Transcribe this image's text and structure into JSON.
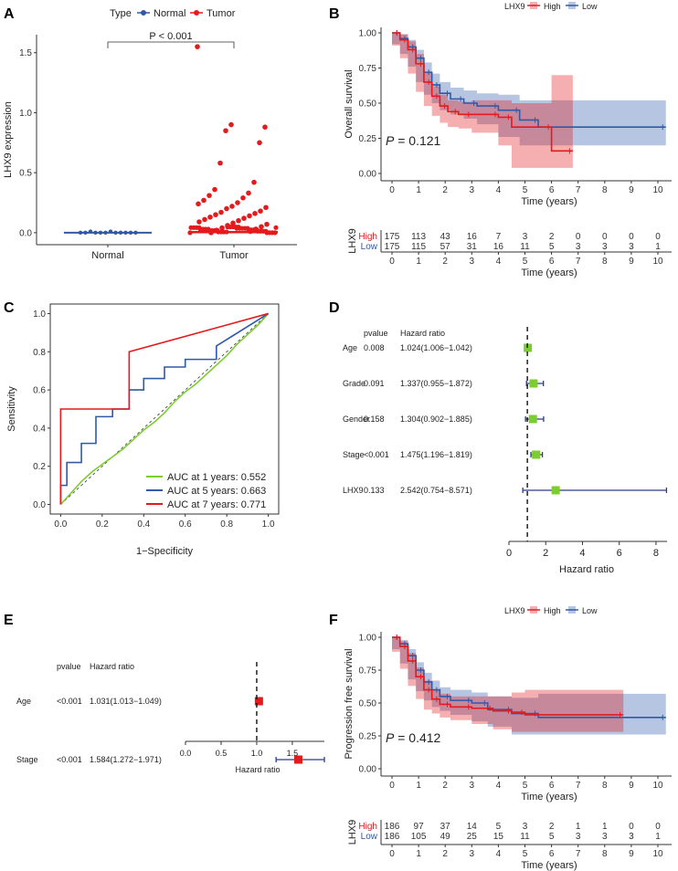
{
  "chart_data": [
    {
      "panel": "A",
      "type": "scatter",
      "legend_title": "Type",
      "legend": [
        "Normal",
        "Tumor"
      ],
      "categories": [
        "Normal",
        "Tumor"
      ],
      "ylabel": "LHX9 expression",
      "ylim": [
        -0.1,
        1.65
      ],
      "yticks": [
        "0.0",
        "0.5",
        "1.0",
        "1.5"
      ],
      "pvalue": "P < 0.001",
      "colors": {
        "normal": "#2f5aa8",
        "tumor": "#e41a1c"
      },
      "tumor_points": [
        1.55,
        0.9,
        0.88,
        0.85,
        0.75,
        0.58,
        0.42,
        0.36,
        0.33,
        0.31,
        0.29,
        0.27,
        0.25,
        0.24,
        0.22,
        0.21,
        0.2,
        0.18,
        0.17,
        0.16,
        0.15,
        0.14,
        0.13,
        0.12,
        0.11,
        0.1,
        0.09,
        0.08,
        0.07,
        0.06,
        0.05,
        0.04,
        0.03,
        0.02,
        0.01,
        0.0
      ],
      "normal_points": [
        0.0,
        0.0,
        0.01,
        0.0,
        0.0,
        0.0,
        0.01,
        0.0,
        0.0,
        0.0,
        0.0,
        0.0
      ],
      "medians": [
        0.0,
        0.005
      ]
    },
    {
      "panel": "B",
      "type": "line",
      "legend_title": "LHX9",
      "legend": [
        "High",
        "Low"
      ],
      "ylabel": "Overall survival",
      "xlabel": "Time (years)",
      "xlim": [
        0,
        10.3
      ],
      "ylim": [
        0,
        1.05
      ],
      "xticks": [
        "0",
        "1",
        "2",
        "3",
        "4",
        "5",
        "6",
        "7",
        "8",
        "9",
        "10"
      ],
      "yticks": [
        "0.00",
        "0.25",
        "0.50",
        "0.75",
        "1.00"
      ],
      "pvalue_prefix": "P",
      "pvalue_value": " = 0.121",
      "series": [
        {
          "name": "High",
          "color": "#e41a1c",
          "x": [
            0,
            0.3,
            0.6,
            0.9,
            1.2,
            1.5,
            1.8,
            2.1,
            2.5,
            3.0,
            4.0,
            4.5,
            6.0,
            6.8
          ],
          "y": [
            1,
            0.95,
            0.88,
            0.78,
            0.65,
            0.55,
            0.48,
            0.44,
            0.42,
            0.42,
            0.4,
            0.33,
            0.16,
            0.16
          ],
          "lower": [
            1,
            0.91,
            0.82,
            0.71,
            0.58,
            0.48,
            0.41,
            0.36,
            0.33,
            0.32,
            0.29,
            0.2,
            0.04,
            0.04
          ],
          "upper": [
            1,
            0.99,
            0.94,
            0.85,
            0.72,
            0.62,
            0.56,
            0.52,
            0.51,
            0.52,
            0.52,
            0.5,
            0.7,
            0.7
          ]
        },
        {
          "name": "Low",
          "color": "#2f5aa8",
          "x": [
            0,
            0.3,
            0.6,
            0.9,
            1.2,
            1.5,
            1.8,
            2.2,
            2.7,
            3.2,
            4.0,
            4.8,
            5.5,
            10.3
          ],
          "y": [
            1,
            0.96,
            0.9,
            0.82,
            0.72,
            0.63,
            0.57,
            0.53,
            0.5,
            0.48,
            0.45,
            0.38,
            0.33,
            0.33
          ],
          "lower": [
            1,
            0.92,
            0.85,
            0.76,
            0.65,
            0.56,
            0.5,
            0.45,
            0.42,
            0.39,
            0.35,
            0.26,
            0.2,
            0.2
          ],
          "upper": [
            1,
            0.99,
            0.95,
            0.88,
            0.79,
            0.71,
            0.65,
            0.61,
            0.59,
            0.57,
            0.56,
            0.52,
            0.52,
            0.52
          ]
        }
      ],
      "risk_table": {
        "label": "LHX9",
        "rows": [
          {
            "name": "High",
            "values": [
              "175",
              "113",
              "43",
              "16",
              "7",
              "3",
              "2",
              "0",
              "0",
              "0",
              "0"
            ]
          },
          {
            "name": "Low",
            "values": [
              "175",
              "115",
              "57",
              "31",
              "16",
              "11",
              "5",
              "3",
              "3",
              "3",
              "1"
            ]
          }
        ]
      }
    },
    {
      "panel": "C",
      "type": "line",
      "ylabel": "Sensitivity",
      "xlabel": "1−Specificity",
      "xlim": [
        -0.05,
        1.05
      ],
      "ylim": [
        -0.05,
        1.05
      ],
      "xticks": [
        "0.0",
        "0.2",
        "0.4",
        "0.6",
        "0.8",
        "1.0"
      ],
      "yticks": [
        "0.0",
        "0.2",
        "0.4",
        "0.6",
        "0.8",
        "1.0"
      ],
      "series": [
        {
          "name": "AUC at 1 years: 0.552",
          "color": "#7ccd2f",
          "x": [
            0,
            0.05,
            0.1,
            0.15,
            0.2,
            0.25,
            0.3,
            0.35,
            0.4,
            0.45,
            0.5,
            0.55,
            0.6,
            0.65,
            0.7,
            0.75,
            0.8,
            0.85,
            0.9,
            0.95,
            1
          ],
          "y": [
            0,
            0.06,
            0.12,
            0.17,
            0.21,
            0.25,
            0.29,
            0.34,
            0.39,
            0.43,
            0.48,
            0.54,
            0.59,
            0.63,
            0.68,
            0.73,
            0.78,
            0.84,
            0.89,
            0.94,
            1
          ]
        },
        {
          "name": "AUC at 5 years: 0.663",
          "color": "#2f5aa8",
          "x": [
            0,
            0,
            0.03,
            0.03,
            0.1,
            0.1,
            0.17,
            0.17,
            0.25,
            0.25,
            0.33,
            0.33,
            0.4,
            0.4,
            0.5,
            0.5,
            0.6,
            0.6,
            0.75,
            0.75,
            1
          ],
          "y": [
            0,
            0.1,
            0.1,
            0.22,
            0.22,
            0.32,
            0.32,
            0.46,
            0.46,
            0.5,
            0.5,
            0.6,
            0.6,
            0.66,
            0.66,
            0.72,
            0.72,
            0.76,
            0.76,
            0.83,
            1
          ]
        },
        {
          "name": "AUC at 7 years: 0.771",
          "color": "#e41a1c",
          "x": [
            0,
            0,
            0.33,
            0.33,
            1
          ],
          "y": [
            0,
            0.5,
            0.5,
            0.8,
            1
          ]
        }
      ]
    },
    {
      "panel": "D",
      "type": "scatter",
      "subtype": "forest",
      "col_pvalue": "pvalue",
      "col_hr": "Hazard ratio",
      "xlabel": "Hazard ratio",
      "xlim": [
        0,
        8.6
      ],
      "xticks": [
        "0",
        "2",
        "4",
        "6",
        "8"
      ],
      "ref_line": 1,
      "color": "#7ccd2f",
      "rows": [
        {
          "label": "Age",
          "pvalue": "0.008",
          "hr_text": "1.024(1.006−1.042)",
          "hr": 1.024,
          "lo": 1.006,
          "hi": 1.042
        },
        {
          "label": "Grade",
          "pvalue": "0.091",
          "hr_text": "1.337(0.955−1.872)",
          "hr": 1.337,
          "lo": 0.955,
          "hi": 1.872
        },
        {
          "label": "Gender",
          "pvalue": "0.158",
          "hr_text": "1.304(0.902−1.885)",
          "hr": 1.304,
          "lo": 0.902,
          "hi": 1.885
        },
        {
          "label": "Stage",
          "pvalue": "<0.001",
          "hr_text": "1.475(1.196−1.819)",
          "hr": 1.475,
          "lo": 1.196,
          "hi": 1.819
        },
        {
          "label": "LHX9",
          "pvalue": "0.133",
          "hr_text": "2.542(0.754−8.571)",
          "hr": 2.542,
          "lo": 0.754,
          "hi": 8.571
        }
      ]
    },
    {
      "panel": "E",
      "type": "scatter",
      "subtype": "forest",
      "col_pvalue": "pvalue",
      "col_hr": "Hazard ratio",
      "xlabel": "Hazard ratio",
      "xlim": [
        0,
        1.95
      ],
      "xticks": [
        "0.0",
        "0.5",
        "1.0",
        "1.5"
      ],
      "ref_line": 1,
      "color": "#e41a1c",
      "rows": [
        {
          "label": "Age",
          "pvalue": "<0.001",
          "hr_text": "1.031(1.013−1.049)",
          "hr": 1.031,
          "lo": 1.013,
          "hi": 1.049
        },
        {
          "label": "Stage",
          "pvalue": "<0.001",
          "hr_text": "1.584(1.272−1.971)",
          "hr": 1.584,
          "lo": 1.272,
          "hi": 1.971
        }
      ]
    },
    {
      "panel": "F",
      "type": "line",
      "legend_title": "LHX9",
      "legend": [
        "High",
        "Low"
      ],
      "ylabel": "Progression free survival",
      "xlabel": "Time (years)",
      "xlim": [
        0,
        10.3
      ],
      "ylim": [
        0,
        1.05
      ],
      "xticks": [
        "0",
        "1",
        "2",
        "3",
        "4",
        "5",
        "6",
        "7",
        "8",
        "9",
        "10"
      ],
      "yticks": [
        "0.00",
        "0.25",
        "0.50",
        "0.75",
        "1.00"
      ],
      "pvalue_prefix": "P",
      "pvalue_value": " = 0.412",
      "series": [
        {
          "name": "High",
          "color": "#e41a1c",
          "x": [
            0,
            0.3,
            0.6,
            0.9,
            1.2,
            1.5,
            1.8,
            2.2,
            3.0,
            3.8,
            4.5,
            5.0,
            8.7
          ],
          "y": [
            1,
            0.93,
            0.82,
            0.7,
            0.6,
            0.53,
            0.49,
            0.47,
            0.46,
            0.44,
            0.43,
            0.41,
            0.41
          ],
          "lower": [
            1,
            0.89,
            0.76,
            0.63,
            0.53,
            0.45,
            0.42,
            0.39,
            0.37,
            0.34,
            0.3,
            0.28,
            0.28
          ],
          "upper": [
            1,
            0.97,
            0.88,
            0.77,
            0.67,
            0.6,
            0.57,
            0.55,
            0.55,
            0.55,
            0.58,
            0.6,
            0.6
          ]
        },
        {
          "name": "Low",
          "color": "#2f5aa8",
          "x": [
            0,
            0.3,
            0.6,
            0.9,
            1.2,
            1.5,
            1.8,
            2.2,
            3.0,
            3.6,
            4.5,
            5.5,
            10.3
          ],
          "y": [
            1,
            0.95,
            0.86,
            0.75,
            0.66,
            0.6,
            0.55,
            0.52,
            0.5,
            0.45,
            0.42,
            0.39,
            0.39
          ],
          "lower": [
            1,
            0.91,
            0.8,
            0.68,
            0.59,
            0.52,
            0.47,
            0.44,
            0.41,
            0.36,
            0.32,
            0.26,
            0.26
          ],
          "upper": [
            1,
            0.98,
            0.91,
            0.81,
            0.73,
            0.67,
            0.62,
            0.6,
            0.58,
            0.55,
            0.54,
            0.57,
            0.57
          ]
        }
      ],
      "risk_table": {
        "label": "LHX9",
        "rows": [
          {
            "name": "High",
            "values": [
              "186",
              "97",
              "37",
              "14",
              "5",
              "3",
              "2",
              "1",
              "1",
              "0",
              "0"
            ]
          },
          {
            "name": "Low",
            "values": [
              "186",
              "105",
              "49",
              "25",
              "15",
              "11",
              "5",
              "3",
              "3",
              "3",
              "1"
            ]
          }
        ]
      }
    }
  ],
  "panel_letters": [
    "A",
    "B",
    "C",
    "D",
    "E",
    "F"
  ]
}
